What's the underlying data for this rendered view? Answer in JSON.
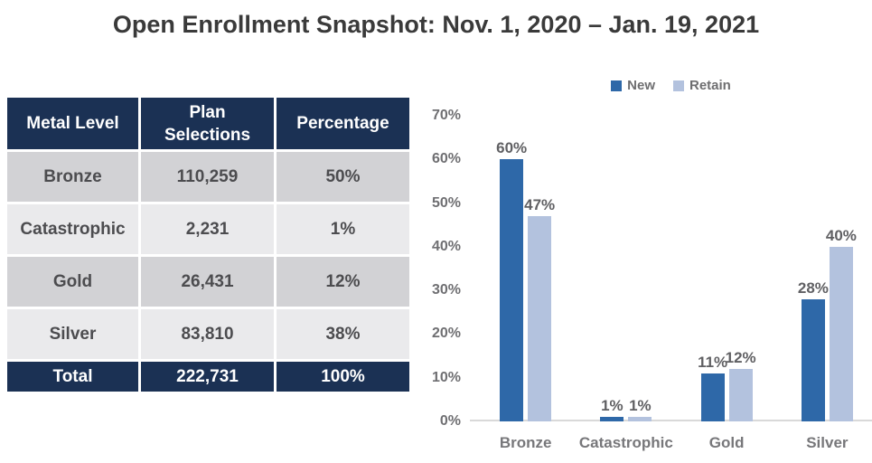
{
  "title": "Open Enrollment Snapshot: Nov. 1, 2020 – Jan. 19, 2021",
  "table": {
    "columns": [
      "Metal Level",
      "Plan Selections",
      "Percentage"
    ],
    "rows": [
      {
        "metal": "Bronze",
        "selections": "110,259",
        "percentage": "50%"
      },
      {
        "metal": "Catastrophic",
        "selections": "2,231",
        "percentage": "1%"
      },
      {
        "metal": "Gold",
        "selections": "26,431",
        "percentage": "12%"
      },
      {
        "metal": "Silver",
        "selections": "83,810",
        "percentage": "38%"
      }
    ],
    "total": {
      "metal": "Total",
      "selections": "222,731",
      "percentage": "100%"
    }
  },
  "chart_data": {
    "type": "bar",
    "title": "",
    "categories": [
      "Bronze",
      "Catastrophic",
      "Gold",
      "Silver"
    ],
    "series": [
      {
        "name": "New",
        "values": [
          60,
          1,
          11,
          28
        ],
        "color": "#2e68a8"
      },
      {
        "name": "Retain",
        "values": [
          47,
          1,
          12,
          40
        ],
        "color": "#b3c2de"
      }
    ],
    "data_labels": [
      [
        "60%",
        "1%",
        "11%",
        "28%"
      ],
      [
        "47%",
        "1%",
        "12%",
        "40%"
      ]
    ],
    "xlabel": "",
    "ylabel": "",
    "ylim": [
      0,
      70
    ],
    "ytick_step": 10,
    "ytick_labels": [
      "0%",
      "10%",
      "20%",
      "30%",
      "40%",
      "50%",
      "60%",
      "70%"
    ],
    "legend_position": "top",
    "grid": false
  },
  "colors": {
    "table_header_bg": "#1b3154",
    "table_row_dark": "#d2d2d5",
    "table_row_light": "#eaeaec",
    "bar_new": "#2e68a8",
    "bar_retain": "#b3c2de",
    "axis_line": "#d9d9d9",
    "title_text": "#3a3a3a",
    "label_gray": "#6f6f72"
  }
}
